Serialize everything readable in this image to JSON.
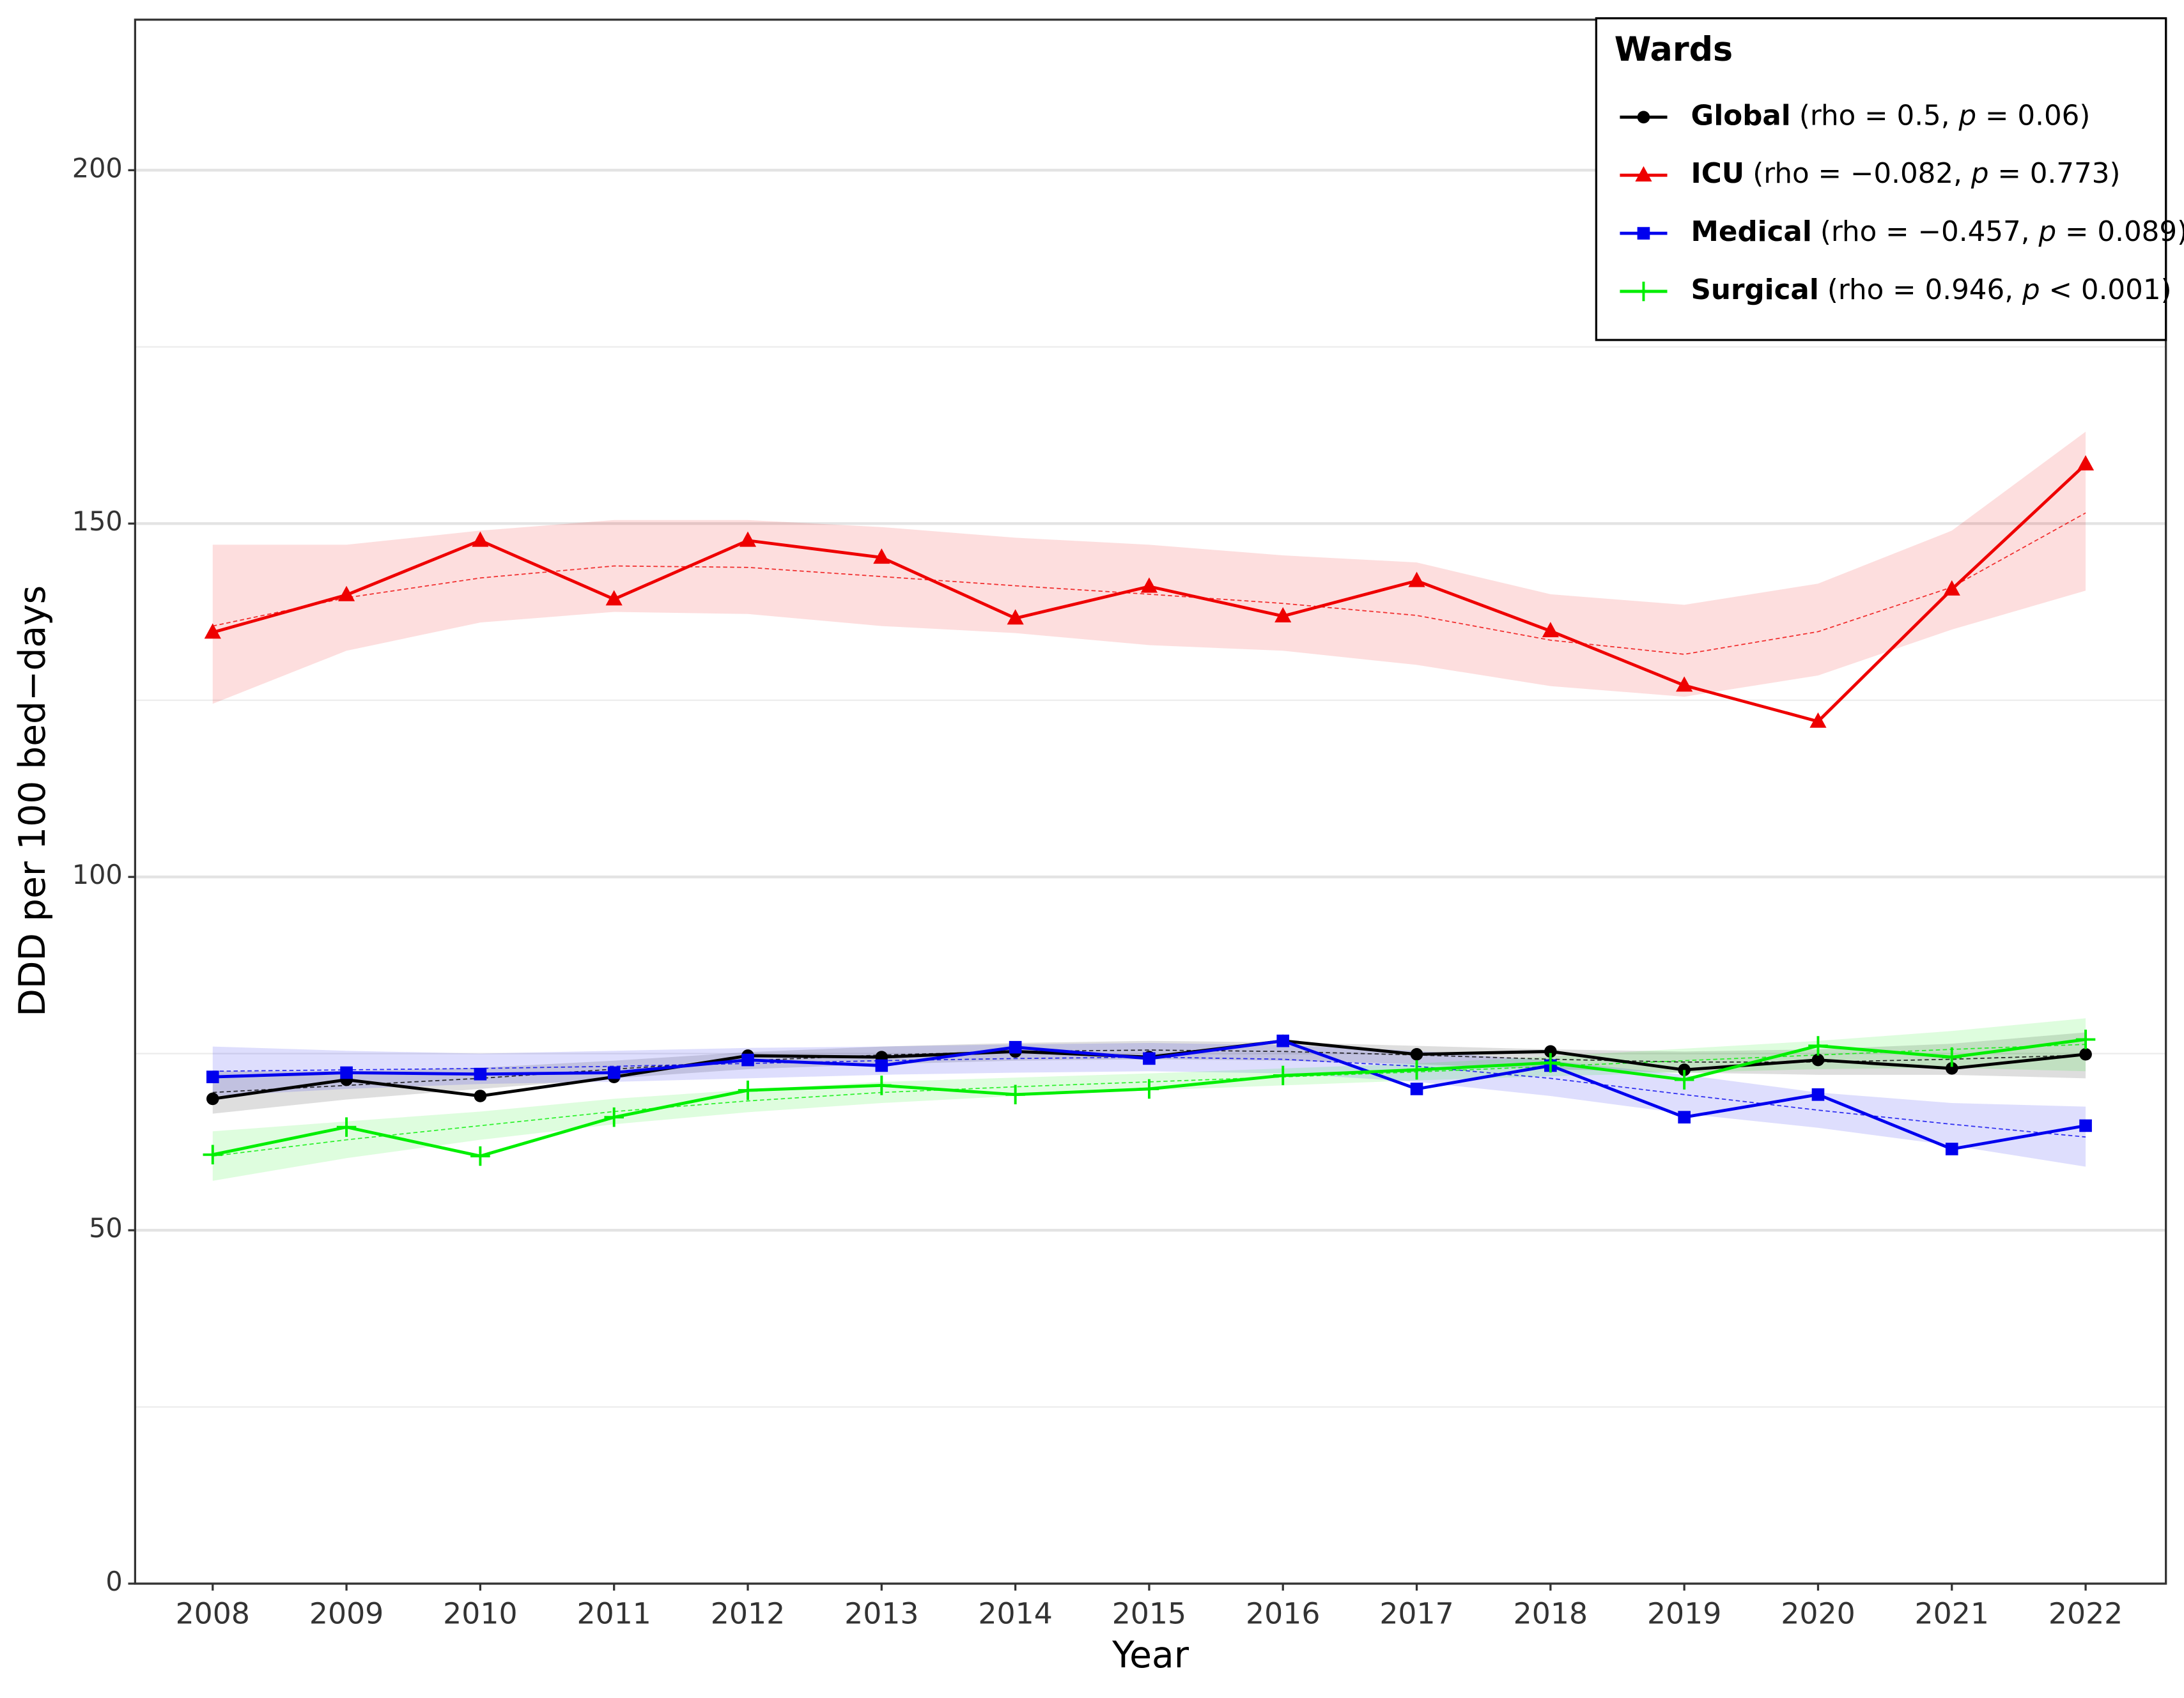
{
  "chart_data": {
    "type": "line",
    "x_label": "Year",
    "y_label": "DDD per 100 bed−days",
    "x": [
      2008,
      2009,
      2010,
      2011,
      2012,
      2013,
      2014,
      2015,
      2016,
      2017,
      2018,
      2019,
      2020,
      2021,
      2022
    ],
    "xlim": [
      2007.42,
      2022.6
    ],
    "xticks": [
      2008,
      2009,
      2010,
      2011,
      2012,
      2013,
      2014,
      2015,
      2016,
      2017,
      2018,
      2019,
      2020,
      2021,
      2022
    ],
    "ylim": [
      0,
      221.3
    ],
    "yticks": [
      0,
      50,
      100,
      150,
      200
    ],
    "minor_grid": [
      25,
      75,
      125,
      175
    ],
    "grid": true,
    "legend": {
      "title": "Wards",
      "position": "top-right"
    },
    "series": [
      {
        "name": "Global",
        "stats": [
          "(rho = 0.5, ",
          "p",
          " = 0.06)"
        ],
        "color": "#000000",
        "marker": "circle",
        "values": [
          68.6,
          71.3,
          69.0,
          71.7,
          74.7,
          74.5,
          75.3,
          74.5,
          76.8,
          74.9,
          75.3,
          72.7,
          74.1,
          72.9,
          74.9
        ],
        "trend": [
          69.5,
          70.5,
          71.5,
          72.8,
          74,
          74.8,
          75.3,
          75.5,
          75.3,
          74.8,
          74.2,
          73.8,
          73.8,
          74.2,
          74.8
        ],
        "band_low": [
          66.5,
          68.5,
          70,
          71.5,
          72.8,
          73.5,
          74,
          74.2,
          74,
          73.5,
          72.8,
          72.3,
          72,
          72,
          71.5
        ],
        "band_high": [
          72.5,
          72.5,
          73,
          74,
          75.2,
          76,
          76.5,
          76.8,
          76.6,
          76.1,
          75.6,
          75.3,
          75.6,
          76.4,
          78
        ]
      },
      {
        "name": "ICU",
        "stats": [
          "(rho = −0.082, ",
          "p",
          " = 0.773)"
        ],
        "color": "#ee0000",
        "marker": "triangle",
        "values": [
          134.6,
          139.9,
          147.6,
          139.3,
          147.6,
          145.2,
          136.6,
          141.1,
          136.9,
          141.9,
          134.8,
          127.1,
          122.0,
          140.7,
          158.4
        ],
        "trend": [
          135.5,
          139.5,
          142.3,
          144,
          143.8,
          142.5,
          141.2,
          140,
          138.7,
          137,
          133.5,
          131.5,
          134.7,
          141,
          151.5
        ],
        "band_low": [
          124.5,
          132,
          136,
          137.5,
          137.2,
          135.5,
          134.5,
          132.8,
          132,
          130,
          127,
          125.5,
          128.5,
          135,
          140.5
        ],
        "band_high": [
          147,
          147,
          149,
          150.5,
          150.5,
          149.5,
          148,
          147,
          145.5,
          144.5,
          140,
          138.5,
          141.5,
          149,
          163
        ]
      },
      {
        "name": "Medical",
        "stats": [
          "(rho = −0.457, ",
          "p",
          " = 0.089)"
        ],
        "color": "#0000ee",
        "marker": "square",
        "values": [
          71.7,
          72.3,
          72.1,
          72.3,
          74.1,
          73.3,
          75.9,
          74.3,
          76.8,
          70.0,
          73.3,
          66.0,
          69.2,
          61.5,
          64.8
        ],
        "trend": [
          72.5,
          72.7,
          72.9,
          73.2,
          73.6,
          74,
          74.3,
          74.5,
          74.2,
          73.2,
          71.5,
          69.2,
          67,
          65,
          63.2
        ],
        "band_low": [
          69,
          70,
          70.7,
          71,
          71.5,
          72,
          72.3,
          72.5,
          72.2,
          71,
          69,
          66.5,
          64.5,
          62,
          59
        ],
        "band_high": [
          76,
          75.4,
          75,
          75.4,
          75.8,
          76,
          76.3,
          76.5,
          76.2,
          75.4,
          74,
          72,
          69.5,
          68,
          67.5
        ]
      },
      {
        "name": "Surgical",
        "stats": [
          "(rho = 0.946, ",
          "p",
          " < 0.001)"
        ],
        "color": "#00ee00",
        "marker": "plus",
        "values": [
          60.7,
          64.6,
          60.5,
          66.0,
          69.8,
          70.5,
          69.2,
          70.0,
          71.9,
          72.7,
          73.7,
          71.3,
          76.1,
          74.5,
          77.0
        ],
        "trend": [
          60.5,
          62.8,
          64.8,
          66.8,
          68.3,
          69.5,
          70.3,
          71,
          71.7,
          72.4,
          73.2,
          74,
          74.8,
          75.6,
          76.3
        ],
        "band_low": [
          57,
          60.2,
          62.8,
          65,
          66.7,
          68,
          69,
          69.8,
          70.5,
          71.2,
          71.8,
          72.3,
          72.8,
          73,
          72.5
        ],
        "band_high": [
          64,
          65.4,
          66.8,
          68.6,
          69.9,
          71,
          71.6,
          72.2,
          72.9,
          73.6,
          74.6,
          75.7,
          76.8,
          78.2,
          80
        ]
      }
    ]
  }
}
